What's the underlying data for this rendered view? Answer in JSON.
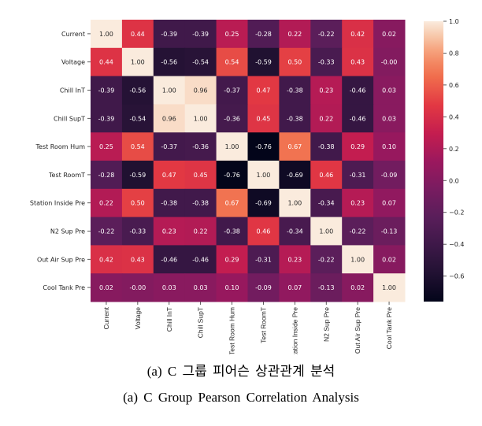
{
  "chart_data": {
    "type": "heatmap",
    "title": "",
    "colormap": "rocket",
    "labels": [
      "Current",
      "Voltage",
      "Chill InT",
      "Chill SupT",
      "Test Room Hum",
      "Test RoomT",
      "Station Inside Pre",
      "N2 Sup Pre",
      "Out Air Sup Pre",
      "Cool Tank Pre"
    ],
    "values": [
      [
        1.0,
        0.44,
        -0.39,
        -0.39,
        0.25,
        -0.28,
        0.22,
        -0.22,
        0.42,
        0.02
      ],
      [
        0.44,
        1.0,
        -0.56,
        -0.54,
        0.54,
        -0.59,
        0.5,
        -0.33,
        0.43,
        -0.0
      ],
      [
        -0.39,
        -0.56,
        1.0,
        0.96,
        -0.37,
        0.47,
        -0.38,
        0.23,
        -0.46,
        0.03
      ],
      [
        -0.39,
        -0.54,
        0.96,
        1.0,
        -0.36,
        0.45,
        -0.38,
        0.22,
        -0.46,
        0.03
      ],
      [
        0.25,
        0.54,
        -0.37,
        -0.36,
        1.0,
        -0.76,
        0.67,
        -0.38,
        0.29,
        0.1
      ],
      [
        -0.28,
        -0.59,
        0.47,
        0.45,
        -0.76,
        1.0,
        -0.69,
        0.46,
        -0.31,
        -0.09
      ],
      [
        0.22,
        0.5,
        -0.38,
        -0.38,
        0.67,
        -0.69,
        1.0,
        -0.34,
        0.23,
        0.07
      ],
      [
        -0.22,
        -0.33,
        0.23,
        0.22,
        -0.38,
        0.46,
        -0.34,
        1.0,
        -0.22,
        -0.13
      ],
      [
        0.42,
        0.43,
        -0.46,
        -0.46,
        0.29,
        -0.31,
        0.23,
        -0.22,
        1.0,
        0.02
      ],
      [
        0.02,
        -0.0,
        0.03,
        0.03,
        0.1,
        -0.09,
        0.07,
        -0.13,
        0.02,
        1.0
      ]
    ],
    "value_labels": [
      [
        "1.00",
        "0.44",
        "-0.39",
        "-0.39",
        "0.25",
        "-0.28",
        "0.22",
        "-0.22",
        "0.42",
        "0.02"
      ],
      [
        "0.44",
        "1.00",
        "-0.56",
        "-0.54",
        "0.54",
        "-0.59",
        "0.50",
        "-0.33",
        "0.43",
        "-0.00"
      ],
      [
        "-0.39",
        "-0.56",
        "1.00",
        "0.96",
        "-0.37",
        "0.47",
        "-0.38",
        "0.23",
        "-0.46",
        "0.03"
      ],
      [
        "-0.39",
        "-0.54",
        "0.96",
        "1.00",
        "-0.36",
        "0.45",
        "-0.38",
        "0.22",
        "-0.46",
        "0.03"
      ],
      [
        "0.25",
        "0.54",
        "-0.37",
        "-0.36",
        "1.00",
        "-0.76",
        "0.67",
        "-0.38",
        "0.29",
        "0.10"
      ],
      [
        "-0.28",
        "-0.59",
        "0.47",
        "0.45",
        "-0.76",
        "1.00",
        "-0.69",
        "0.46",
        "-0.31",
        "-0.09"
      ],
      [
        "0.22",
        "0.50",
        "-0.38",
        "-0.38",
        "0.67",
        "-0.69",
        "1.00",
        "-0.34",
        "0.23",
        "0.07"
      ],
      [
        "-0.22",
        "-0.33",
        "0.23",
        "0.22",
        "-0.38",
        "0.46",
        "-0.34",
        "1.00",
        "-0.22",
        "-0.13"
      ],
      [
        "0.42",
        "0.43",
        "-0.46",
        "-0.46",
        "0.29",
        "-0.31",
        "0.23",
        "-0.22",
        "1.00",
        "0.02"
      ],
      [
        "0.02",
        "-0.00",
        "0.03",
        "0.03",
        "0.10",
        "-0.09",
        "0.07",
        "-0.13",
        "0.02",
        "1.00"
      ]
    ],
    "vmin": -0.76,
    "vmax": 1.0,
    "colorbar": {
      "ticks": [
        1.0,
        0.8,
        0.6,
        0.4,
        0.2,
        0.0,
        -0.2,
        -0.4,
        -0.6
      ],
      "tick_labels": [
        "1.0",
        "0.8",
        "0.6",
        "0.4",
        "0.2",
        "0.0",
        "−0.2",
        "−0.4",
        "−0.6"
      ]
    },
    "xlabel": "",
    "ylabel": "",
    "grid": false
  },
  "captions": {
    "korean": "(a) C 그룹 피어슨 상관관계 분석",
    "english": "(a) C Group Pearson Correlation Analysis"
  }
}
